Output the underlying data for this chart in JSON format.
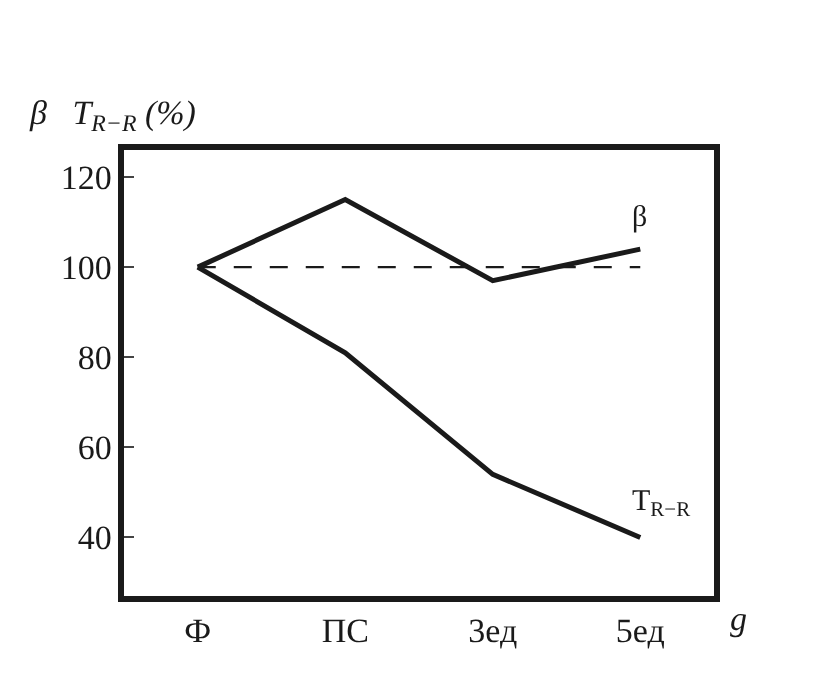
{
  "chart_data": {
    "type": "line",
    "ylabel": "β   T$_{R−R}$ (%)",
    "xlabel": "g",
    "categories": [
      "Ф",
      "ПС",
      "3ед",
      "5ед"
    ],
    "series": [
      {
        "name": "β",
        "color": "#1a1a1a",
        "values": [
          100,
          115,
          97,
          104
        ]
      },
      {
        "name": "T$_{R−R}$",
        "color": "#1a1a1a",
        "values": [
          100,
          81,
          54,
          40
        ]
      }
    ],
    "ylim": [
      27,
      126
    ],
    "yticks": [
      40,
      60,
      80,
      100,
      120
    ],
    "ref_lines": [
      {
        "axis": "y",
        "value": 100,
        "line_style": "dashed",
        "color": "#1a1a1a"
      }
    ],
    "grid": false,
    "legend": false,
    "marker": "none",
    "line_style": "solid"
  }
}
